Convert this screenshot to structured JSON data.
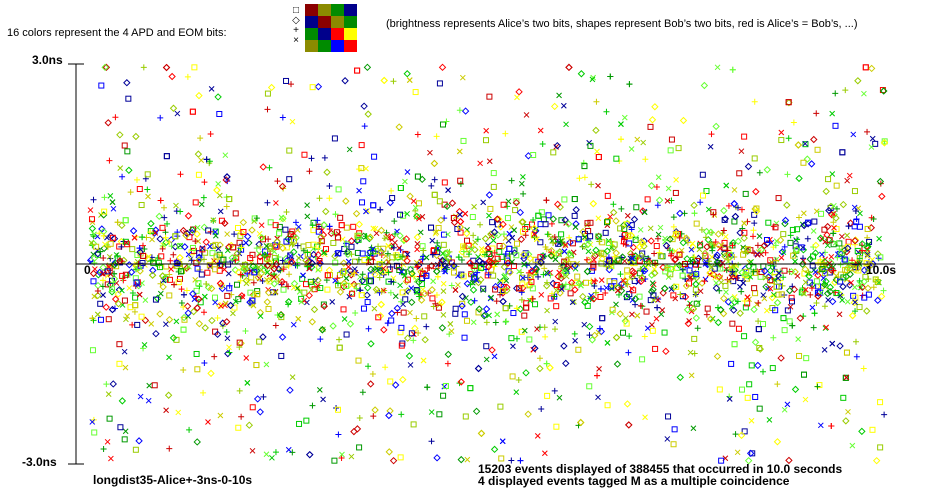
{
  "header": {
    "legend_text": "16 colors represent the 4 APD and EOM bits:",
    "shape_symbols": [
      "□",
      "◇",
      "+",
      "×"
    ],
    "color_grid": [
      [
        "#ffffff",
        "#8b0000",
        "#8b8b00",
        "#008b00",
        "#00008b"
      ],
      [
        "",
        "#00008b",
        "#8b0000",
        "#8b8b00",
        "#008b00"
      ],
      [
        "",
        "#008b00",
        "#00008b",
        "#ff0000",
        "#ffff00"
      ],
      [
        "",
        "#8b8b00",
        "#008b00",
        "#0000ff",
        "#ff0000"
      ]
    ],
    "note": "(brightness represents Alice’s two bits, shapes represent Bob’s two bits, red is Alice’s = Bob’s, ...)"
  },
  "chart_data": {
    "type": "scatter",
    "title": "",
    "xlabel": "",
    "ylabel": "",
    "xlim": [
      0,
      10
    ],
    "ylim": [
      -3,
      3
    ],
    "x_tick_labels": [
      "0",
      "10.0s"
    ],
    "y_tick_labels": [
      "3.0ns",
      "-3.0ns"
    ],
    "distribution": {
      "description": "dense band of points centered at 0ns",
      "core_sigma_ns": 0.35,
      "tail_range_ns": [
        -3,
        3
      ],
      "displayed_events": 15203
    },
    "point_colors": [
      "#00cc00",
      "#66ff33",
      "#cccc00",
      "#ffff00",
      "#99cc00",
      "#009900",
      "#ff0000",
      "#cc0000",
      "#0000ff",
      "#000099"
    ],
    "point_shapes": [
      "square",
      "diamond",
      "plus",
      "cross"
    ],
    "caption": "longdist35-Alice+-3ns-0-10s",
    "stats_line1": "15203 events displayed of 388455 that occurred in 10.0 seconds",
    "stats_line2": "4 displayed events tagged M as a multiple coincidence"
  }
}
